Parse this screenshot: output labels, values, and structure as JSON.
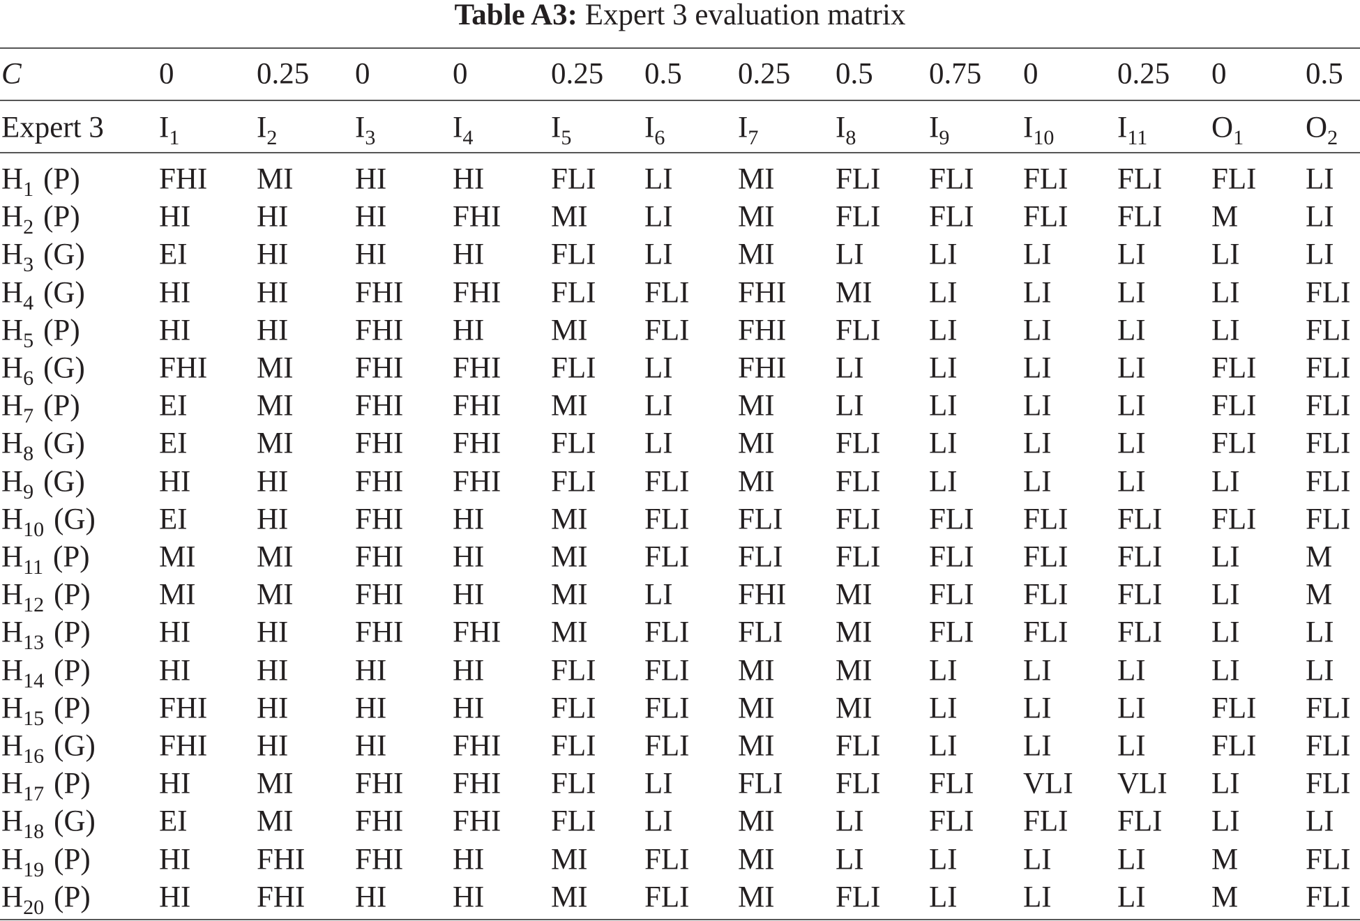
{
  "title": {
    "label": "Table A3:",
    "text": "Expert 3 evaluation matrix"
  },
  "table": {
    "weights_label": "C",
    "weights": [
      0,
      0.25,
      0,
      0,
      0.25,
      0.5,
      0.25,
      0.5,
      0.75,
      0,
      0.25,
      0,
      0.5
    ],
    "corner": "Expert 3",
    "columns": [
      {
        "base": "I",
        "sub": "1"
      },
      {
        "base": "I",
        "sub": "2"
      },
      {
        "base": "I",
        "sub": "3"
      },
      {
        "base": "I",
        "sub": "4"
      },
      {
        "base": "I",
        "sub": "5"
      },
      {
        "base": "I",
        "sub": "6"
      },
      {
        "base": "I",
        "sub": "7"
      },
      {
        "base": "I",
        "sub": "8"
      },
      {
        "base": "I",
        "sub": "9"
      },
      {
        "base": "I",
        "sub": "10"
      },
      {
        "base": "I",
        "sub": "11"
      },
      {
        "base": "O",
        "sub": "1"
      },
      {
        "base": "O",
        "sub": "2"
      }
    ],
    "rows": [
      {
        "label": {
          "base": "H",
          "sub": "1",
          "tag": "(P)"
        },
        "cells": [
          "FHI",
          "MI",
          "HI",
          "HI",
          "FLI",
          "LI",
          "MI",
          "FLI",
          "FLI",
          "FLI",
          "FLI",
          "FLI",
          "LI"
        ]
      },
      {
        "label": {
          "base": "H",
          "sub": "2",
          "tag": "(P)"
        },
        "cells": [
          "HI",
          "HI",
          "HI",
          "FHI",
          "MI",
          "LI",
          "MI",
          "FLI",
          "FLI",
          "FLI",
          "FLI",
          "M",
          "LI"
        ]
      },
      {
        "label": {
          "base": "H",
          "sub": "3",
          "tag": "(G)"
        },
        "cells": [
          "EI",
          "HI",
          "HI",
          "HI",
          "FLI",
          "LI",
          "MI",
          "LI",
          "LI",
          "LI",
          "LI",
          "LI",
          "LI"
        ]
      },
      {
        "label": {
          "base": "H",
          "sub": "4",
          "tag": "(G)"
        },
        "cells": [
          "HI",
          "HI",
          "FHI",
          "FHI",
          "FLI",
          "FLI",
          "FHI",
          "MI",
          "LI",
          "LI",
          "LI",
          "LI",
          "FLI"
        ]
      },
      {
        "label": {
          "base": "H",
          "sub": "5",
          "tag": "(P)"
        },
        "cells": [
          "HI",
          "HI",
          "FHI",
          "HI",
          "MI",
          "FLI",
          "FHI",
          "FLI",
          "LI",
          "LI",
          "LI",
          "LI",
          "FLI"
        ]
      },
      {
        "label": {
          "base": "H",
          "sub": "6",
          "tag": "(G)"
        },
        "cells": [
          "FHI",
          "MI",
          "FHI",
          "FHI",
          "FLI",
          "LI",
          "FHI",
          "LI",
          "LI",
          "LI",
          "LI",
          "FLI",
          "FLI"
        ]
      },
      {
        "label": {
          "base": "H",
          "sub": "7",
          "tag": "(P)"
        },
        "cells": [
          "EI",
          "MI",
          "FHI",
          "FHI",
          "MI",
          "LI",
          "MI",
          "LI",
          "LI",
          "LI",
          "LI",
          "FLI",
          "FLI"
        ]
      },
      {
        "label": {
          "base": "H",
          "sub": "8",
          "tag": "(G)"
        },
        "cells": [
          "EI",
          "MI",
          "FHI",
          "FHI",
          "FLI",
          "LI",
          "MI",
          "FLI",
          "LI",
          "LI",
          "LI",
          "FLI",
          "FLI"
        ]
      },
      {
        "label": {
          "base": "H",
          "sub": "9",
          "tag": "(G)"
        },
        "cells": [
          "HI",
          "HI",
          "FHI",
          "FHI",
          "FLI",
          "FLI",
          "MI",
          "FLI",
          "LI",
          "LI",
          "LI",
          "LI",
          "FLI"
        ]
      },
      {
        "label": {
          "base": "H",
          "sub": "10",
          "tag": "(G)"
        },
        "cells": [
          "EI",
          "HI",
          "FHI",
          "HI",
          "MI",
          "FLI",
          "FLI",
          "FLI",
          "FLI",
          "FLI",
          "FLI",
          "FLI",
          "FLI"
        ]
      },
      {
        "label": {
          "base": "H",
          "sub": "11",
          "tag": "(P)"
        },
        "cells": [
          "MI",
          "MI",
          "FHI",
          "HI",
          "MI",
          "FLI",
          "FLI",
          "FLI",
          "FLI",
          "FLI",
          "FLI",
          "LI",
          "M"
        ]
      },
      {
        "label": {
          "base": "H",
          "sub": "12",
          "tag": "(P)"
        },
        "cells": [
          "MI",
          "MI",
          "FHI",
          "HI",
          "MI",
          "LI",
          "FHI",
          "MI",
          "FLI",
          "FLI",
          "FLI",
          "LI",
          "M"
        ]
      },
      {
        "label": {
          "base": "H",
          "sub": "13",
          "tag": "(P)"
        },
        "cells": [
          "HI",
          "HI",
          "FHI",
          "FHI",
          "MI",
          "FLI",
          "FLI",
          "MI",
          "FLI",
          "FLI",
          "FLI",
          "LI",
          "LI"
        ]
      },
      {
        "label": {
          "base": "H",
          "sub": "14",
          "tag": "(P)"
        },
        "cells": [
          "HI",
          "HI",
          "HI",
          "HI",
          "FLI",
          "FLI",
          "MI",
          "MI",
          "LI",
          "LI",
          "LI",
          "LI",
          "LI"
        ]
      },
      {
        "label": {
          "base": "H",
          "sub": "15",
          "tag": "(P)"
        },
        "cells": [
          "FHI",
          "HI",
          "HI",
          "HI",
          "FLI",
          "FLI",
          "MI",
          "MI",
          "LI",
          "LI",
          "LI",
          "FLI",
          "FLI"
        ]
      },
      {
        "label": {
          "base": "H",
          "sub": "16",
          "tag": "(G)"
        },
        "cells": [
          "FHI",
          "HI",
          "HI",
          "FHI",
          "FLI",
          "FLI",
          "MI",
          "FLI",
          "LI",
          "LI",
          "LI",
          "FLI",
          "FLI"
        ]
      },
      {
        "label": {
          "base": "H",
          "sub": "17",
          "tag": "(P)"
        },
        "cells": [
          "HI",
          "MI",
          "FHI",
          "FHI",
          "FLI",
          "LI",
          "FLI",
          "FLI",
          "FLI",
          "VLI",
          "VLI",
          "LI",
          "FLI"
        ]
      },
      {
        "label": {
          "base": "H",
          "sub": "18",
          "tag": "(G)"
        },
        "cells": [
          "EI",
          "MI",
          "FHI",
          "FHI",
          "FLI",
          "LI",
          "MI",
          "LI",
          "FLI",
          "FLI",
          "FLI",
          "LI",
          "LI"
        ]
      },
      {
        "label": {
          "base": "H",
          "sub": "19",
          "tag": "(P)"
        },
        "cells": [
          "HI",
          "FHI",
          "FHI",
          "HI",
          "MI",
          "FLI",
          "MI",
          "LI",
          "LI",
          "LI",
          "LI",
          "M",
          "FLI"
        ]
      },
      {
        "label": {
          "base": "H",
          "sub": "20",
          "tag": "(P)"
        },
        "cells": [
          "HI",
          "FHI",
          "HI",
          "HI",
          "MI",
          "FLI",
          "MI",
          "FLI",
          "LI",
          "LI",
          "LI",
          "M",
          "FLI"
        ]
      }
    ]
  }
}
